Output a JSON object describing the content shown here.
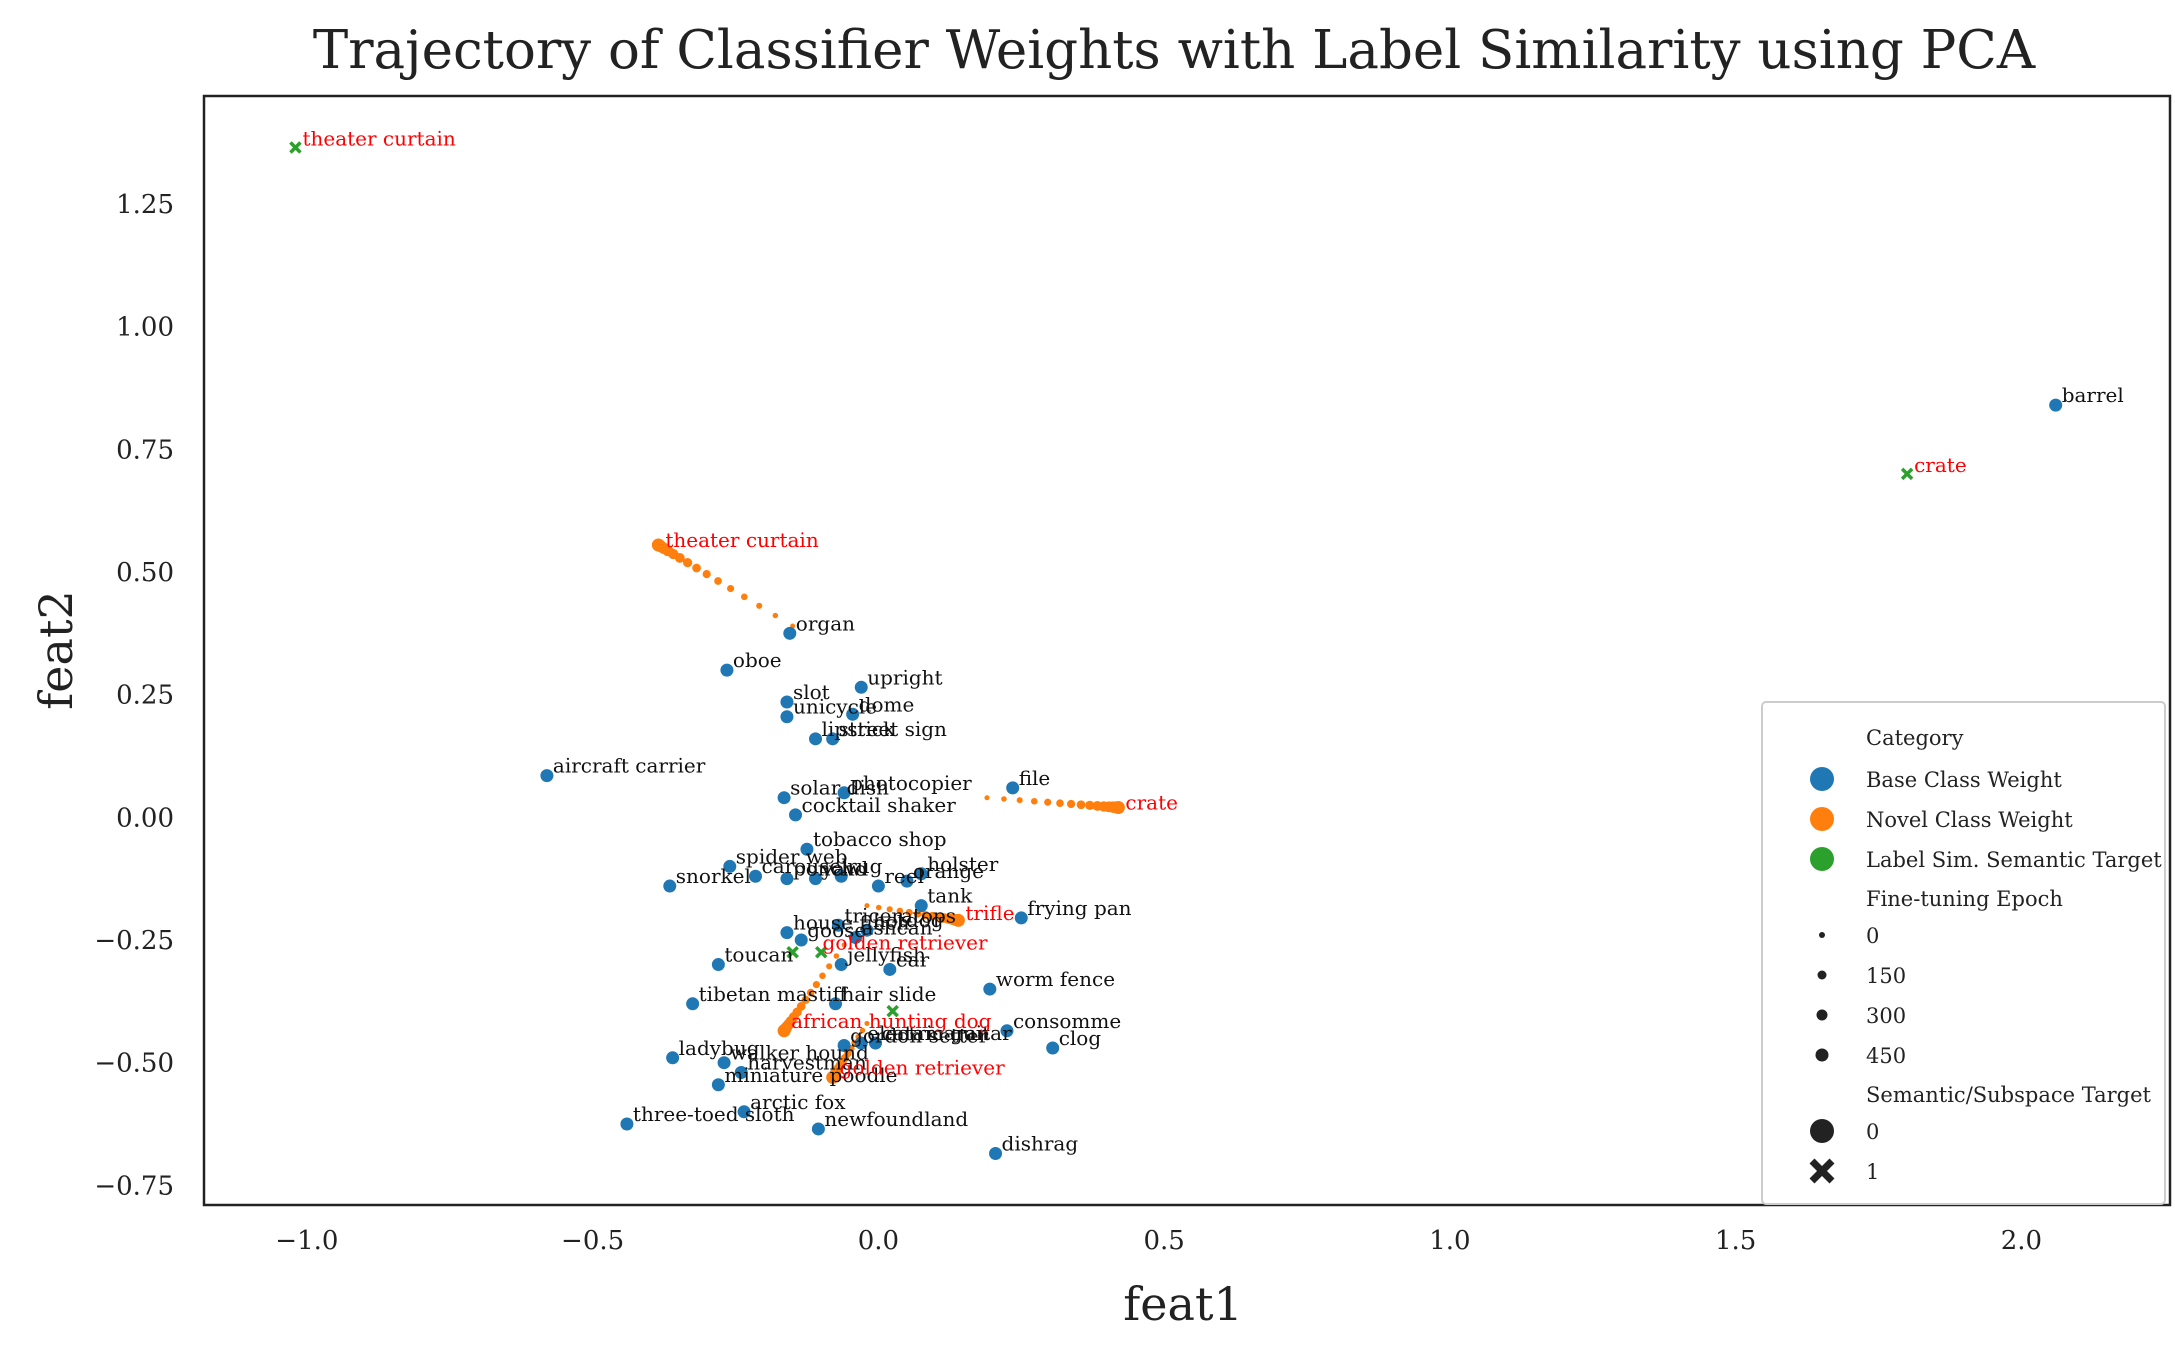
{
  "chart_data": {
    "type": "scatter",
    "title": "Trajectory of Classifier Weights with Label Similarity using PCA",
    "xlabel": "feat1",
    "ylabel": "feat2",
    "xlim": [
      -1.18,
      2.26
    ],
    "ylim": [
      -0.79,
      1.47
    ],
    "xticks": [
      -1.0,
      -0.5,
      0.0,
      0.5,
      1.0,
      1.5,
      2.0
    ],
    "xtick_labels": [
      "−1.0",
      "−0.5",
      "0.0",
      "0.5",
      "1.0",
      "1.5",
      "2.0"
    ],
    "yticks": [
      1.25,
      1.0,
      0.75,
      0.5,
      0.25,
      0.0,
      -0.25,
      -0.5,
      -0.75
    ],
    "ytick_labels": [
      "1.25",
      "1.00",
      "0.75",
      "0.50",
      "0.25",
      "0.00",
      "−0.25",
      "−0.50",
      "−0.75"
    ],
    "grid": false,
    "legend_position": "right",
    "colors": {
      "base": "#1f77b4",
      "novel": "#ff7f0e",
      "target": "#2ca02c",
      "novel_label": "#ff0000",
      "base_label": "#111111"
    },
    "legend": {
      "category_title": "Category",
      "categories": [
        "Base Class Weight",
        "Novel Class Weight",
        "Label Sim. Semantic Target"
      ],
      "epoch_title": "Fine-tuning Epoch",
      "epochs": [
        "0",
        "150",
        "300",
        "450"
      ],
      "target_title": "Semantic/Subspace Target",
      "targets": [
        "0",
        "1"
      ]
    },
    "base_points": [
      {
        "label": "barrel",
        "x": 2.06,
        "y": 0.84
      },
      {
        "label": "organ",
        "x": -0.155,
        "y": 0.375
      },
      {
        "label": "oboe",
        "x": -0.265,
        "y": 0.3
      },
      {
        "label": "upright",
        "x": -0.03,
        "y": 0.265
      },
      {
        "label": "slot",
        "x": -0.16,
        "y": 0.235
      },
      {
        "label": "dome",
        "x": -0.045,
        "y": 0.21
      },
      {
        "label": "unicycle",
        "x": -0.16,
        "y": 0.205
      },
      {
        "label": "lipstick",
        "x": -0.11,
        "y": 0.16
      },
      {
        "label": "street sign",
        "x": -0.08,
        "y": 0.16
      },
      {
        "label": "aircraft carrier",
        "x": -0.58,
        "y": 0.085
      },
      {
        "label": "file",
        "x": 0.235,
        "y": 0.06
      },
      {
        "label": "photocopier",
        "x": -0.06,
        "y": 0.05
      },
      {
        "label": "solar dish",
        "x": -0.165,
        "y": 0.04
      },
      {
        "label": "cocktail shaker",
        "x": -0.145,
        "y": 0.005
      },
      {
        "label": "tobacco shop",
        "x": -0.125,
        "y": -0.065
      },
      {
        "label": "holster",
        "x": 0.075,
        "y": -0.115
      },
      {
        "label": "spider web",
        "x": -0.26,
        "y": -0.1
      },
      {
        "label": "carousel",
        "x": -0.215,
        "y": -0.12
      },
      {
        "label": "poncho",
        "x": -0.16,
        "y": -0.125
      },
      {
        "label": "yawl",
        "x": -0.11,
        "y": -0.125
      },
      {
        "label": "rug",
        "x": -0.065,
        "y": -0.12
      },
      {
        "label": "orange",
        "x": 0.05,
        "y": -0.13
      },
      {
        "label": "reel",
        "x": 0.0,
        "y": -0.14
      },
      {
        "label": "snorkel",
        "x": -0.365,
        "y": -0.14
      },
      {
        "label": "tank",
        "x": 0.075,
        "y": -0.18
      },
      {
        "label": "frying pan",
        "x": 0.25,
        "y": -0.205
      },
      {
        "label": "triceratops",
        "x": -0.07,
        "y": -0.22
      },
      {
        "label": "house finch",
        "x": -0.16,
        "y": -0.235
      },
      {
        "label": "hotdog",
        "x": -0.02,
        "y": -0.23
      },
      {
        "label": "ashcan",
        "x": -0.04,
        "y": -0.245
      },
      {
        "label": "goose",
        "x": -0.135,
        "y": -0.25
      },
      {
        "label": "toucan",
        "x": -0.28,
        "y": -0.3
      },
      {
        "label": "jellyfish",
        "x": -0.065,
        "y": -0.3
      },
      {
        "label": "ear",
        "x": 0.02,
        "y": -0.31
      },
      {
        "label": "worm fence",
        "x": 0.195,
        "y": -0.35
      },
      {
        "label": "tibetan mastiff",
        "x": -0.325,
        "y": -0.38
      },
      {
        "label": "hair slide",
        "x": -0.075,
        "y": -0.38
      },
      {
        "label": "consomme",
        "x": 0.225,
        "y": -0.435
      },
      {
        "label": "clog",
        "x": 0.305,
        "y": -0.47
      },
      {
        "label": "ladybug",
        "x": -0.36,
        "y": -0.49
      },
      {
        "label": "gordon setter",
        "x": -0.06,
        "y": -0.465
      },
      {
        "label": "electric guitar",
        "x": -0.03,
        "y": -0.46
      },
      {
        "label": "catamaran",
        "x": -0.005,
        "y": -0.46
      },
      {
        "label": "walker hound",
        "x": -0.27,
        "y": -0.5
      },
      {
        "label": "harvestman",
        "x": -0.24,
        "y": -0.52
      },
      {
        "label": "miniature poodle",
        "x": -0.28,
        "y": -0.545
      },
      {
        "label": "arctic fox",
        "x": -0.235,
        "y": -0.6
      },
      {
        "label": "three-toed sloth",
        "x": -0.44,
        "y": -0.625
      },
      {
        "label": "newfoundland",
        "x": -0.105,
        "y": -0.635
      },
      {
        "label": "dishrag",
        "x": 0.205,
        "y": -0.685
      }
    ],
    "novel_trajectories": [
      {
        "label": "theater curtain",
        "x0": -0.15,
        "y0": 0.39,
        "x1": -0.385,
        "y1": 0.555
      },
      {
        "label": "crate",
        "x0": 0.19,
        "y0": 0.04,
        "x1": 0.42,
        "y1": 0.02
      },
      {
        "label": "trifle",
        "x0": -0.02,
        "y0": -0.18,
        "x1": 0.14,
        "y1": -0.21
      },
      {
        "label": "african hunting dog",
        "x0": -0.06,
        "y0": -0.26,
        "x1": -0.165,
        "y1": -0.435
      },
      {
        "label": "golden retriever",
        "x0": -0.02,
        "y0": -0.42,
        "x1": -0.08,
        "y1": -0.53
      }
    ],
    "targets": [
      {
        "label": "theater curtain",
        "x": -1.02,
        "y": 1.365
      },
      {
        "label": "crate",
        "x": 1.8,
        "y": 0.7
      },
      {
        "label": "golden retriever",
        "x": -0.15,
        "y": -0.275
      },
      {
        "label": "african hunting dog",
        "x": -0.1,
        "y": -0.275
      },
      {
        "label": "trifle",
        "x": 0.025,
        "y": -0.395
      }
    ],
    "novel_end_labels": [
      {
        "label": "theater curtain",
        "x": -0.385,
        "y": 0.555
      },
      {
        "label": "crate",
        "x": 0.42,
        "y": 0.02
      },
      {
        "label": "trifle",
        "x": 0.14,
        "y": -0.205
      },
      {
        "label": "golden retriever",
        "x": -0.11,
        "y": -0.265
      },
      {
        "label": "african hunting dog",
        "x": -0.165,
        "y": -0.425
      },
      {
        "label": "golden retriever",
        "x": -0.08,
        "y": -0.52
      }
    ]
  }
}
